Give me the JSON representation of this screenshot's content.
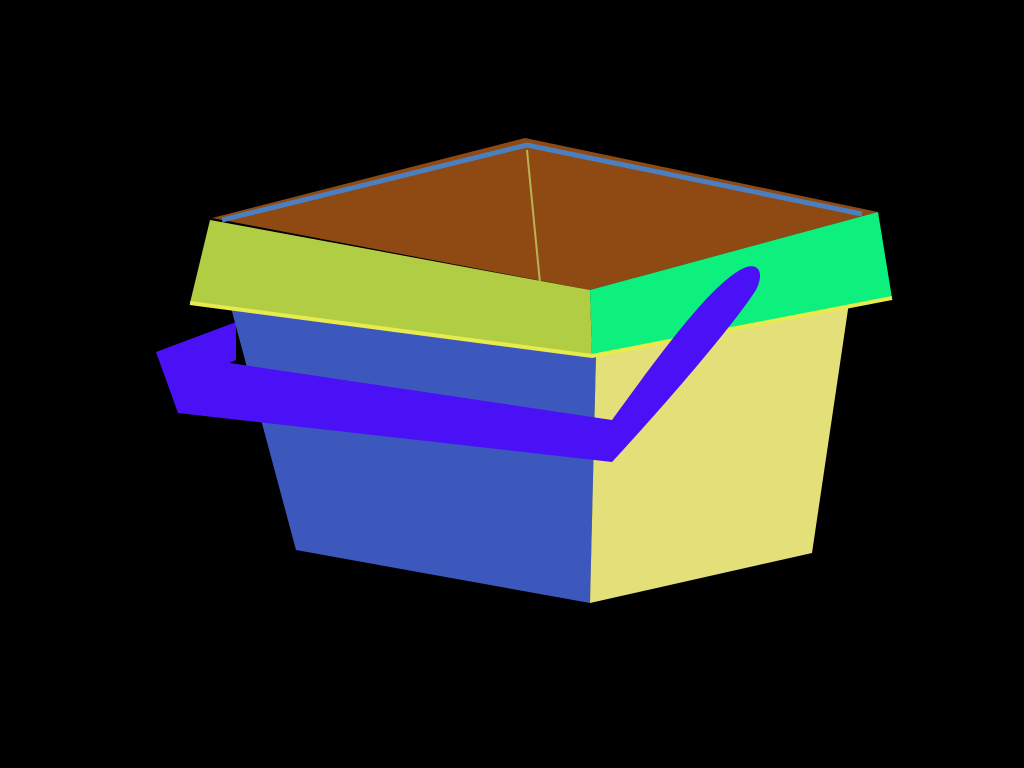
{
  "scene": {
    "background_color": "#000000",
    "subject": "basket-icon",
    "parts": {
      "interior_back": {
        "color": "#8E4A12"
      },
      "interior_seam": {
        "color": "#B8B35A"
      },
      "rim_inner_edge": {
        "color": "#4C7FC0"
      },
      "rim_front": {
        "color": "#B1CD44"
      },
      "rim_side": {
        "color": "#0EF07D"
      },
      "rim_edge_trim": {
        "color": "#E8EB4E"
      },
      "body_front": {
        "color": "#3D58BD"
      },
      "body_side": {
        "color": "#E3E07A"
      },
      "handle": {
        "color": "#4A11F6"
      }
    }
  }
}
